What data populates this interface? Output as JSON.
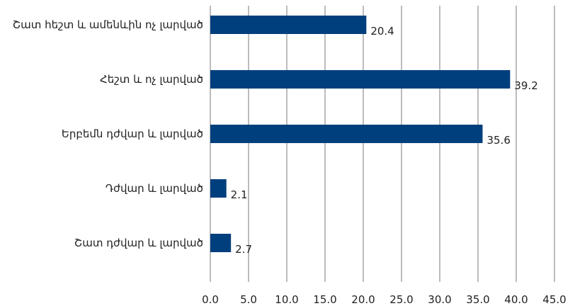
{
  "chart_data": {
    "type": "bar",
    "orientation": "horizontal",
    "categories": [
      "Շատ հեշտ և ամենևին ոչ լարված",
      "Հեշտ և ոչ լարված",
      "Երբեմն դժվար և լարված",
      "Դժվար և լարված",
      "Շատ դժվար և լարված"
    ],
    "values": [
      20.4,
      39.2,
      35.6,
      2.1,
      2.7
    ],
    "value_labels": [
      "20.4",
      "39.2",
      "35.6",
      "2.1",
      "2.7"
    ],
    "xlim": [
      0,
      45
    ],
    "x_ticks": [
      "0.0",
      "5.0",
      "10.0",
      "15.0",
      "20.0",
      "25.0",
      "30.0",
      "35.0",
      "40.0",
      "45.0"
    ],
    "grid": "vertical",
    "legend": "none",
    "bar_color": "#003f7d",
    "title": "",
    "xlabel": "",
    "ylabel": ""
  }
}
